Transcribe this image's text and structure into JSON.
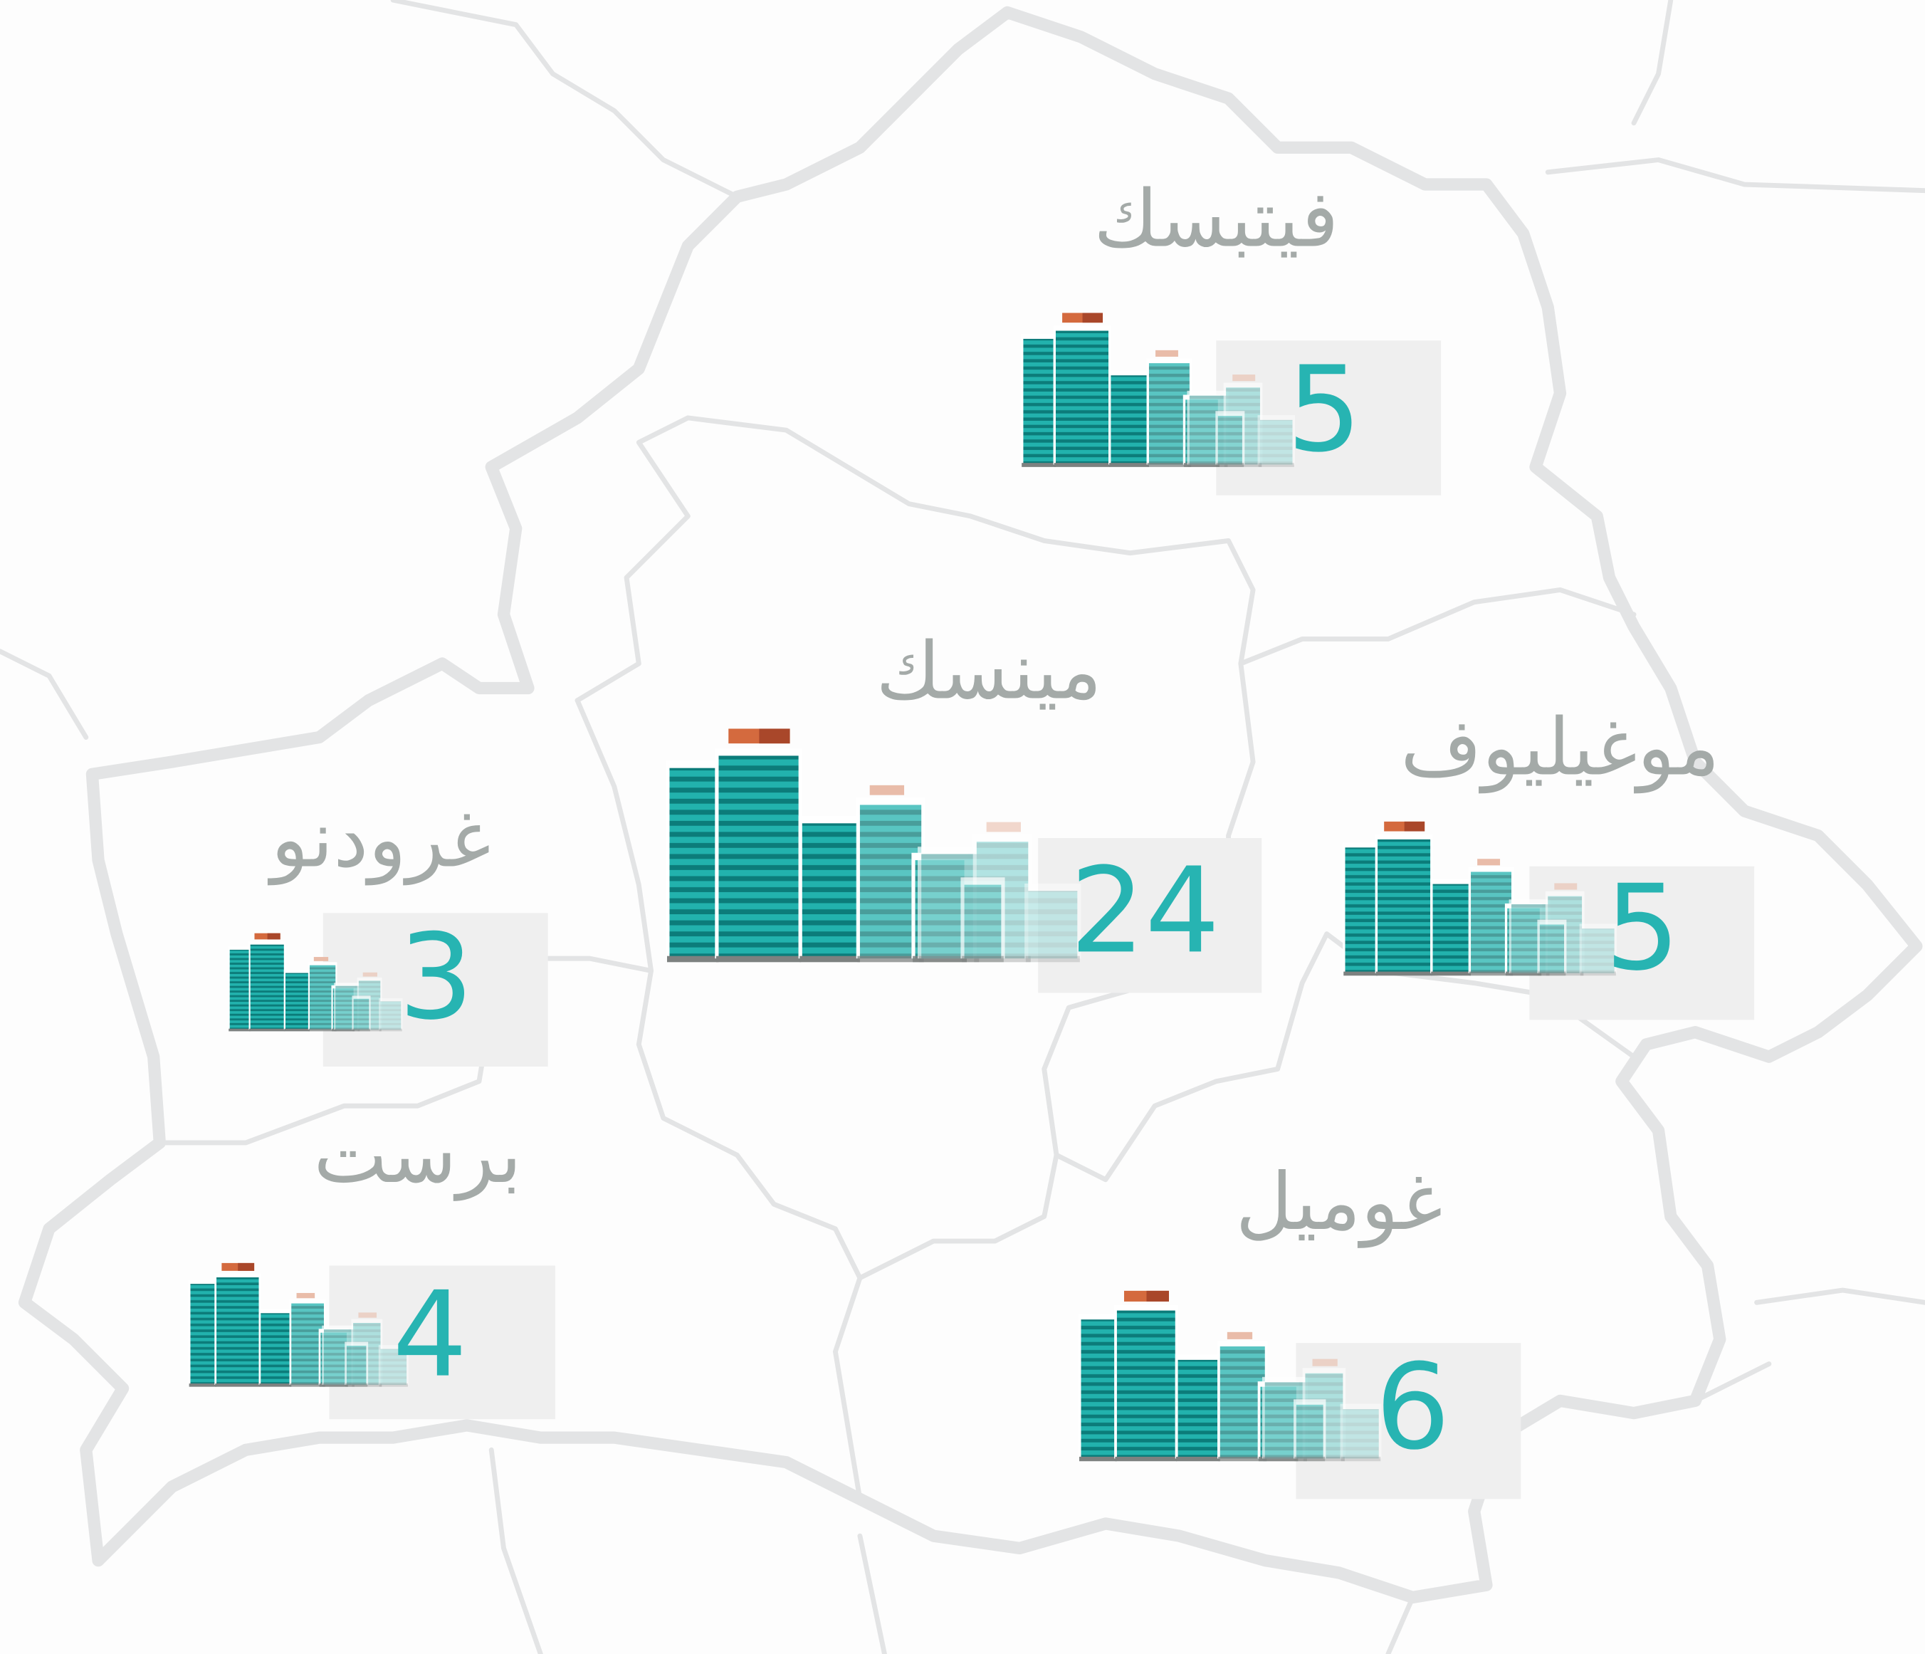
{
  "regions": [
    {
      "name": "فيتبسك",
      "value": 5
    },
    {
      "name": "مينسك",
      "value": 24
    },
    {
      "name": "موغيليوف",
      "value": 5
    },
    {
      "name": "غرودنو",
      "value": 3
    },
    {
      "name": "برست",
      "value": 4
    },
    {
      "name": "غوميل",
      "value": 6
    }
  ]
}
